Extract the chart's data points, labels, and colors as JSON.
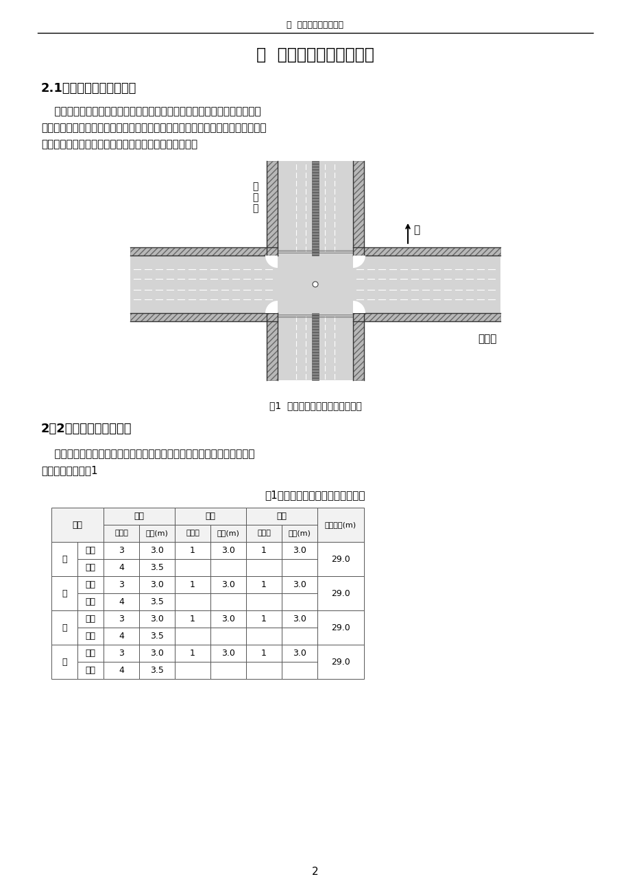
{
  "page_bg": "#ffffff",
  "header_text": "二  交叉口现状调查分析",
  "title": "二  交叉口现状调查与分析",
  "section1_heading": "2.1交叉口区域位置及现状",
  "para1_lines": [
    "    淄博市南京路与人民路交叉口，位于理工大学东北处，附近有瑞贤园，凯瑞",
    "碧园等住宅小区，人口密集复杂，机动车集中，人流、交通流量大且交通流复杂，",
    "交叉口拥挤、车辆运行混乱，特别在高峰时段车流量大。"
  ],
  "fig_caption": "图1  南京路与人民路交叉口示意图",
  "section2_heading": "2．2交叉口车道情况调查",
  "para2_lines": [
    "    通过对南京路与人民路交叉口的实地测量和观测得到了交叉口车道的组成",
    "和实际宽度如下表1"
  ],
  "table_title": "表1南京路与人民路交叉口基本情况",
  "directions": [
    "东",
    "西",
    "南",
    "北"
  ],
  "rows": [
    [
      "进口",
      "3",
      "3.0",
      "1",
      "3.0",
      "1",
      "3.0",
      "29.0"
    ],
    [
      "出口",
      "4",
      "3.5",
      "",
      "",
      "",
      "",
      ""
    ],
    [
      "进口",
      "3",
      "3.0",
      "1",
      "3.0",
      "1",
      "3.0",
      "29.0"
    ],
    [
      "出口",
      "4",
      "3.5",
      "",
      "",
      "",
      "",
      ""
    ],
    [
      "进口",
      "3",
      "3.0",
      "1",
      "3.0",
      "1",
      "3.0",
      "29.0"
    ],
    [
      "出口",
      "4",
      "3.5",
      "",
      "",
      "",
      "",
      ""
    ],
    [
      "进口",
      "3",
      "3.0",
      "1",
      "3.0",
      "1",
      "3.0",
      "29.0"
    ],
    [
      "出口",
      "4",
      "3.5",
      "",
      "",
      "",
      "",
      ""
    ]
  ],
  "page_number": "2"
}
